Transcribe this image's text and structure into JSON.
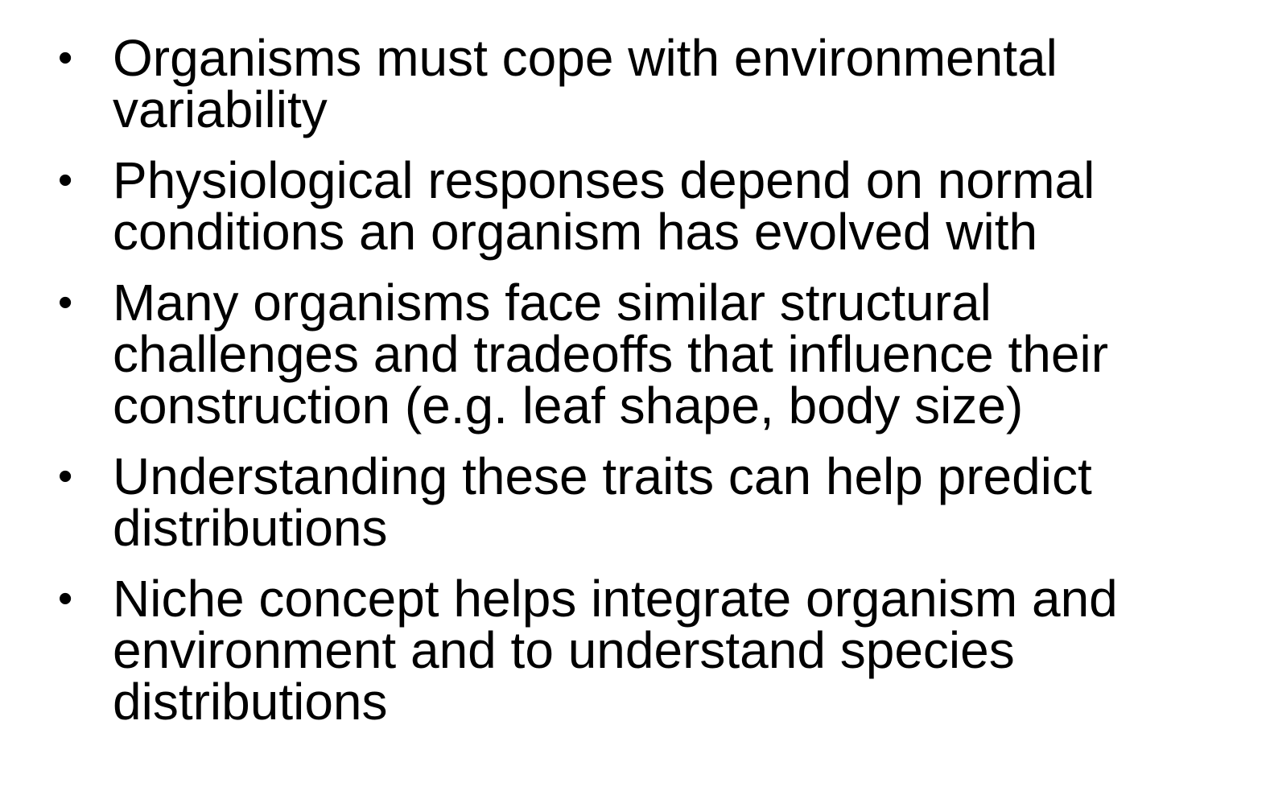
{
  "bullet_symbol": "•",
  "bullets": [
    {
      "lines": [
        "Organisms must cope with environmental",
        "variability"
      ]
    },
    {
      "lines": [
        "Physiological responses depend on normal",
        "conditions an organism has evolved with"
      ]
    },
    {
      "lines": [
        "Many organisms face similar structural",
        "challenges and tradeoffs that influence their",
        "construction (e.g. leaf shape, body size)"
      ]
    },
    {
      "lines": [
        "Understanding these traits can help predict",
        "distributions"
      ]
    },
    {
      "lines": [
        "Niche concept helps integrate organism and",
        "environment and to understand species",
        "distributions"
      ]
    }
  ]
}
